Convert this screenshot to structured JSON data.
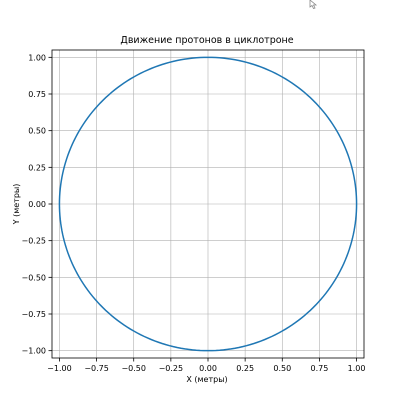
{
  "chart_data": {
    "type": "line",
    "title": "Движение протонов в циклотроне",
    "xlabel": "X (метры)",
    "ylabel": "Y (метры)",
    "xlim": [
      -1.05,
      1.05
    ],
    "ylim": [
      -1.05,
      1.05
    ],
    "grid": true,
    "xticks": [
      -1.0,
      -0.75,
      -0.5,
      -0.25,
      0.0,
      0.25,
      0.5,
      0.75,
      1.0
    ],
    "yticks": [
      -1.0,
      -0.75,
      -0.5,
      -0.25,
      0.0,
      0.25,
      0.5,
      0.75,
      1.0
    ],
    "xtick_labels": [
      "−1.00",
      "−0.75",
      "−0.50",
      "−0.25",
      "0.00",
      "0.25",
      "0.50",
      "0.75",
      "1.00"
    ],
    "ytick_labels": [
      "−1.00",
      "−0.75",
      "−0.50",
      "−0.25",
      "0.00",
      "0.25",
      "0.50",
      "0.75",
      "1.00"
    ],
    "series": [
      {
        "shape": "circle",
        "center": [
          0,
          0
        ],
        "radius": 1.0,
        "color": "#1f77b4"
      }
    ],
    "grid_color": "#b0b0b0"
  },
  "cursor": {
    "icon": "mouse-pointer-icon"
  }
}
